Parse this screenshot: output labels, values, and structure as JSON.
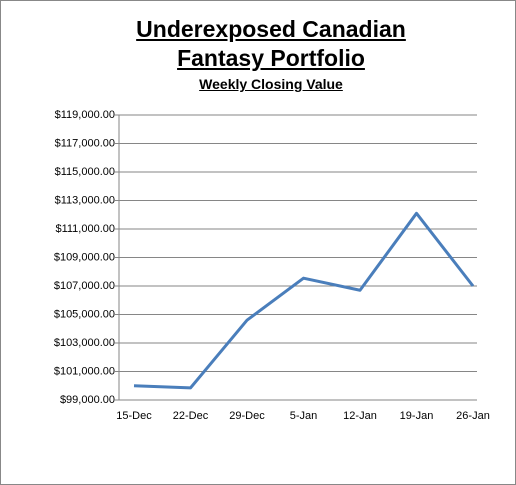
{
  "chart_data": {
    "type": "line",
    "title": "Underexposed Canadian Fantasy Portfolio",
    "subtitle": "Weekly Closing Value",
    "categories": [
      "15-Dec",
      "22-Dec",
      "29-Dec",
      "5-Jan",
      "12-Jan",
      "19-Jan",
      "26-Jan"
    ],
    "series": [
      {
        "name": "Weekly Closing Value",
        "color": "#4a7ebb",
        "values": [
          100000,
          99850,
          104600,
          107550,
          106700,
          112100,
          107000
        ]
      }
    ],
    "ylim": [
      99000,
      119000
    ],
    "yticks": [
      {
        "value": 99000,
        "label": "$99,000.00"
      },
      {
        "value": 101000,
        "label": "$101,000.00"
      },
      {
        "value": 103000,
        "label": "$103,000.00"
      },
      {
        "value": 105000,
        "label": "$105,000.00"
      },
      {
        "value": 107000,
        "label": "$107,000.00"
      },
      {
        "value": 109000,
        "label": "$109,000.00"
      },
      {
        "value": 111000,
        "label": "$111,000.00"
      },
      {
        "value": 113000,
        "label": "$113,000.00"
      },
      {
        "value": 115000,
        "label": "$115,000.00"
      },
      {
        "value": 117000,
        "label": "$117,000.00"
      },
      {
        "value": 119000,
        "label": "$119,000.00"
      }
    ],
    "grid": true
  }
}
